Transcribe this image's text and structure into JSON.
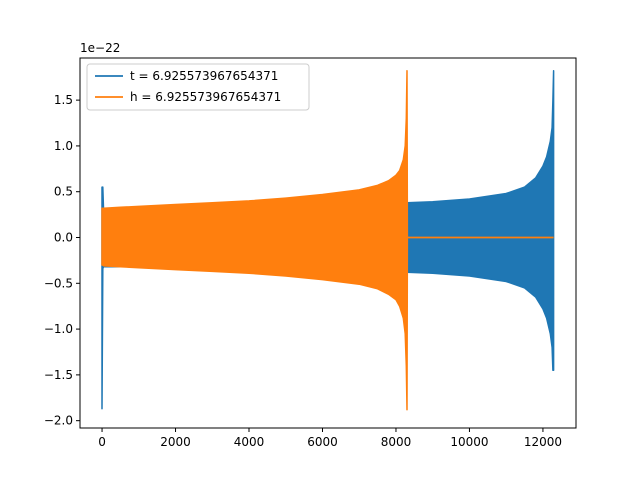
{
  "chart_data": {
    "type": "line",
    "title": "",
    "xlabel": "",
    "ylabel": "",
    "y_offset_label": "1e−22",
    "xlim": [
      -600,
      12900
    ],
    "ylim": [
      -2.08,
      1.96
    ],
    "xticks": [
      0,
      2000,
      4000,
      6000,
      8000,
      10000,
      12000
    ],
    "xtick_labels": [
      "0",
      "2000",
      "4000",
      "6000",
      "8000",
      "10000",
      "12000"
    ],
    "yticks": [
      -2.0,
      -1.5,
      -1.0,
      -0.5,
      0.0,
      0.5,
      1.0,
      1.5
    ],
    "ytick_labels": [
      "−2.0",
      "−1.5",
      "−1.0",
      "−0.5",
      "0.0",
      "0.5",
      "1.0",
      "1.5"
    ],
    "grid": false,
    "legend_position": "top-left",
    "series": [
      {
        "name": "t = 6.925573967654371",
        "color": "#1f77b4",
        "x": [
          0,
          20,
          40,
          60,
          100,
          200,
          500,
          1000,
          2000,
          3000,
          4000,
          5000,
          6000,
          7000,
          8000,
          8250,
          8300,
          9000,
          10000,
          11000,
          11500,
          11800,
          12000,
          12100,
          12200,
          12250,
          12270,
          12290
        ],
        "upper": [
          0.55,
          0.55,
          0.32,
          0.32,
          0.32,
          0.32,
          0.32,
          0.32,
          0.32,
          0.32,
          0.32,
          0.32,
          0.32,
          0.32,
          0.32,
          0.32,
          0.38,
          0.39,
          0.42,
          0.48,
          0.55,
          0.65,
          0.78,
          0.88,
          1.05,
          1.2,
          1.5,
          1.82
        ],
        "lower": [
          -1.87,
          -0.34,
          -0.32,
          -0.32,
          -0.32,
          -0.32,
          -0.32,
          -0.32,
          -0.32,
          -0.32,
          -0.32,
          -0.32,
          -0.32,
          -0.32,
          -0.32,
          -0.32,
          -0.38,
          -0.39,
          -0.42,
          -0.48,
          -0.55,
          -0.65,
          -0.78,
          -0.88,
          -1.05,
          -1.2,
          -1.45,
          -1.45
        ]
      },
      {
        "name": "h = 6.925573967654371",
        "color": "#ff7f0e",
        "x": [
          0,
          20,
          50,
          500,
          1000,
          2000,
          3000,
          4000,
          5000,
          6000,
          7000,
          7500,
          7800,
          8000,
          8100,
          8200,
          8250,
          8280,
          8300,
          8310
        ],
        "upper": [
          0.32,
          0.32,
          0.32,
          0.33,
          0.34,
          0.36,
          0.38,
          0.4,
          0.43,
          0.47,
          0.52,
          0.57,
          0.62,
          0.68,
          0.73,
          0.85,
          1.0,
          1.3,
          1.82,
          0.0
        ],
        "lower": [
          -0.3,
          -0.3,
          -0.31,
          -0.32,
          -0.33,
          -0.35,
          -0.37,
          -0.39,
          -0.42,
          -0.46,
          -0.51,
          -0.56,
          -0.62,
          -0.68,
          -0.75,
          -0.88,
          -1.05,
          -1.4,
          -1.88,
          0.0
        ],
        "flat_after": {
          "x0": 8310,
          "x1": 12290,
          "y": 0.0
        }
      }
    ]
  }
}
